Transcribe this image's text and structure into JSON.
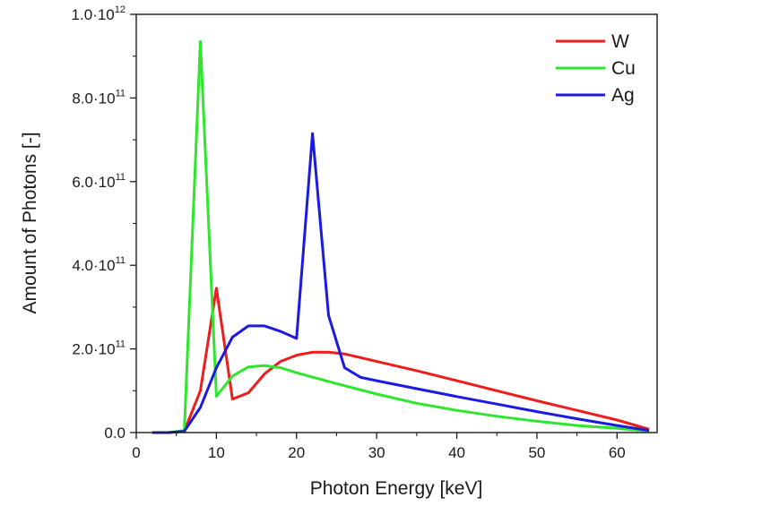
{
  "chart_data": {
    "type": "line",
    "xlabel": "Photon Energy [keV]",
    "ylabel": "Amount of Photons [-]",
    "xlim": [
      0,
      65
    ],
    "ylim": [
      0,
      1000000000000.0
    ],
    "x_ticks": [
      {
        "value": 0,
        "label": "0"
      },
      {
        "value": 10,
        "label": "10"
      },
      {
        "value": 20,
        "label": "20"
      },
      {
        "value": 30,
        "label": "30"
      },
      {
        "value": 40,
        "label": "40"
      },
      {
        "value": 50,
        "label": "50"
      },
      {
        "value": 60,
        "label": "60"
      }
    ],
    "y_ticks": [
      {
        "value": 0,
        "mantissa": "0.0",
        "exponent": ""
      },
      {
        "value": 200000000000.0,
        "mantissa": "2.0·10",
        "exponent": "11"
      },
      {
        "value": 400000000000.0,
        "mantissa": "4.0·10",
        "exponent": "11"
      },
      {
        "value": 600000000000.0,
        "mantissa": "6.0·10",
        "exponent": "11"
      },
      {
        "value": 800000000000.0,
        "mantissa": "8.0·10",
        "exponent": "11"
      },
      {
        "value": 1000000000000.0,
        "mantissa": "1.0·10",
        "exponent": "12"
      }
    ],
    "legend_position": "top-right",
    "series": [
      {
        "name": "W",
        "color": "#ee1c1c",
        "points": [
          [
            2,
            0
          ],
          [
            4,
            0
          ],
          [
            6,
            3000000000.0
          ],
          [
            8,
            100000000000.0
          ],
          [
            10,
            345000000000.0
          ],
          [
            12,
            80000000000.0
          ],
          [
            14,
            95000000000.0
          ],
          [
            16,
            140000000000.0
          ],
          [
            18,
            170000000000.0
          ],
          [
            20,
            185000000000.0
          ],
          [
            22,
            192000000000.0
          ],
          [
            24,
            192000000000.0
          ],
          [
            26,
            188000000000.0
          ],
          [
            30,
            170000000000.0
          ],
          [
            35,
            148000000000.0
          ],
          [
            40,
            124000000000.0
          ],
          [
            45,
            100000000000.0
          ],
          [
            50,
            76000000000.0
          ],
          [
            55,
            53000000000.0
          ],
          [
            60,
            30000000000.0
          ],
          [
            64,
            8000000000.0
          ]
        ]
      },
      {
        "name": "Cu",
        "color": "#2ee62e",
        "points": [
          [
            2,
            0
          ],
          [
            4,
            0
          ],
          [
            6,
            5000000000.0
          ],
          [
            8,
            935000000000.0
          ],
          [
            10,
            87000000000.0
          ],
          [
            12,
            135000000000.0
          ],
          [
            14,
            157000000000.0
          ],
          [
            16,
            160000000000.0
          ],
          [
            18,
            155000000000.0
          ],
          [
            20,
            143000000000.0
          ],
          [
            25,
            117000000000.0
          ],
          [
            30,
            92000000000.0
          ],
          [
            35,
            70000000000.0
          ],
          [
            40,
            53000000000.0
          ],
          [
            45,
            39000000000.0
          ],
          [
            50,
            27000000000.0
          ],
          [
            55,
            17000000000.0
          ],
          [
            60,
            10000000000.0
          ],
          [
            64,
            3000000000.0
          ]
        ]
      },
      {
        "name": "Ag",
        "color": "#1a1ae0",
        "points": [
          [
            2,
            0
          ],
          [
            4,
            0
          ],
          [
            6,
            3000000000.0
          ],
          [
            8,
            60000000000.0
          ],
          [
            10,
            155000000000.0
          ],
          [
            12,
            228000000000.0
          ],
          [
            14,
            255000000000.0
          ],
          [
            16,
            255000000000.0
          ],
          [
            18,
            242000000000.0
          ],
          [
            20,
            225000000000.0
          ],
          [
            22,
            715000000000.0
          ],
          [
            24,
            280000000000.0
          ],
          [
            26,
            155000000000.0
          ],
          [
            28,
            132000000000.0
          ],
          [
            30,
            124000000000.0
          ],
          [
            35,
            105000000000.0
          ],
          [
            40,
            86000000000.0
          ],
          [
            45,
            68000000000.0
          ],
          [
            50,
            50000000000.0
          ],
          [
            55,
            33000000000.0
          ],
          [
            60,
            17000000000.0
          ],
          [
            64,
            5000000000.0
          ]
        ]
      }
    ]
  }
}
